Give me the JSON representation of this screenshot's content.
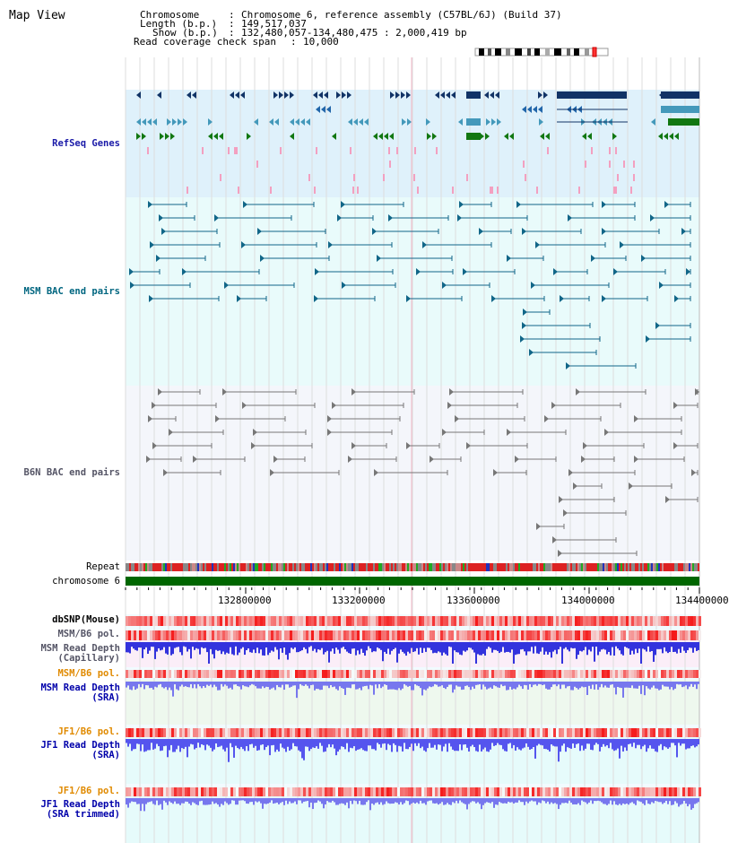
{
  "title": "Map View",
  "header": {
    "chromosome_label": "Chromosome",
    "chromosome_value": "Chromosome 6, reference assembly (C57BL/6J) (Build 37)",
    "length_label": "Length (b.p.)",
    "length_value": "149,517,037",
    "show_label": "Show (b.p.)",
    "show_value": "132,480,057-134,480,475 : 2,000,419 bp",
    "coverage_label": "Read coverage check span",
    "coverage_value": "10,000"
  },
  "tracks": {
    "refseq": "RefSeq Genes",
    "msm_bac": "MSM BAC end pairs",
    "b6n_bac": "B6N BAC end pairs",
    "repeat": "Repeat",
    "chromosome": "chromosome 6",
    "dbsnp": "dbSNP(Mouse)",
    "msm_b6_pol_1": "MSM/B6 pol.",
    "msm_depth_cap": "MSM Read Depth\n(Capillary)",
    "msm_b6_pol_2": "MSM/B6 pol.",
    "msm_depth_sra": "MSM Read Depth\n(SRA)",
    "jf1_b6_pol_1": "JF1/B6 pol.",
    "jf1_depth_sra": "JF1 Read Depth\n(SRA)",
    "jf1_b6_pol_2": "JF1/B6 pol.",
    "jf1_depth_trim": "JF1 Read Depth\n(SRA trimmed)"
  },
  "axis_ticks": [
    "132800000",
    "133200000",
    "133600000",
    "134000000",
    "134400000"
  ],
  "colors": {
    "refseq_bg": "#dff1fb",
    "msm_bg": "#e9fbfb",
    "b6n_bg": "#f4f6fb",
    "refseq_label": "#1a1aa8",
    "msm_label": "#006680",
    "b6n_label": "#555566",
    "pol_label": "#e08a00",
    "depth_label": "#0000aa",
    "dbsnp_label": "#000000",
    "chromosome_bar": "#006600"
  }
}
